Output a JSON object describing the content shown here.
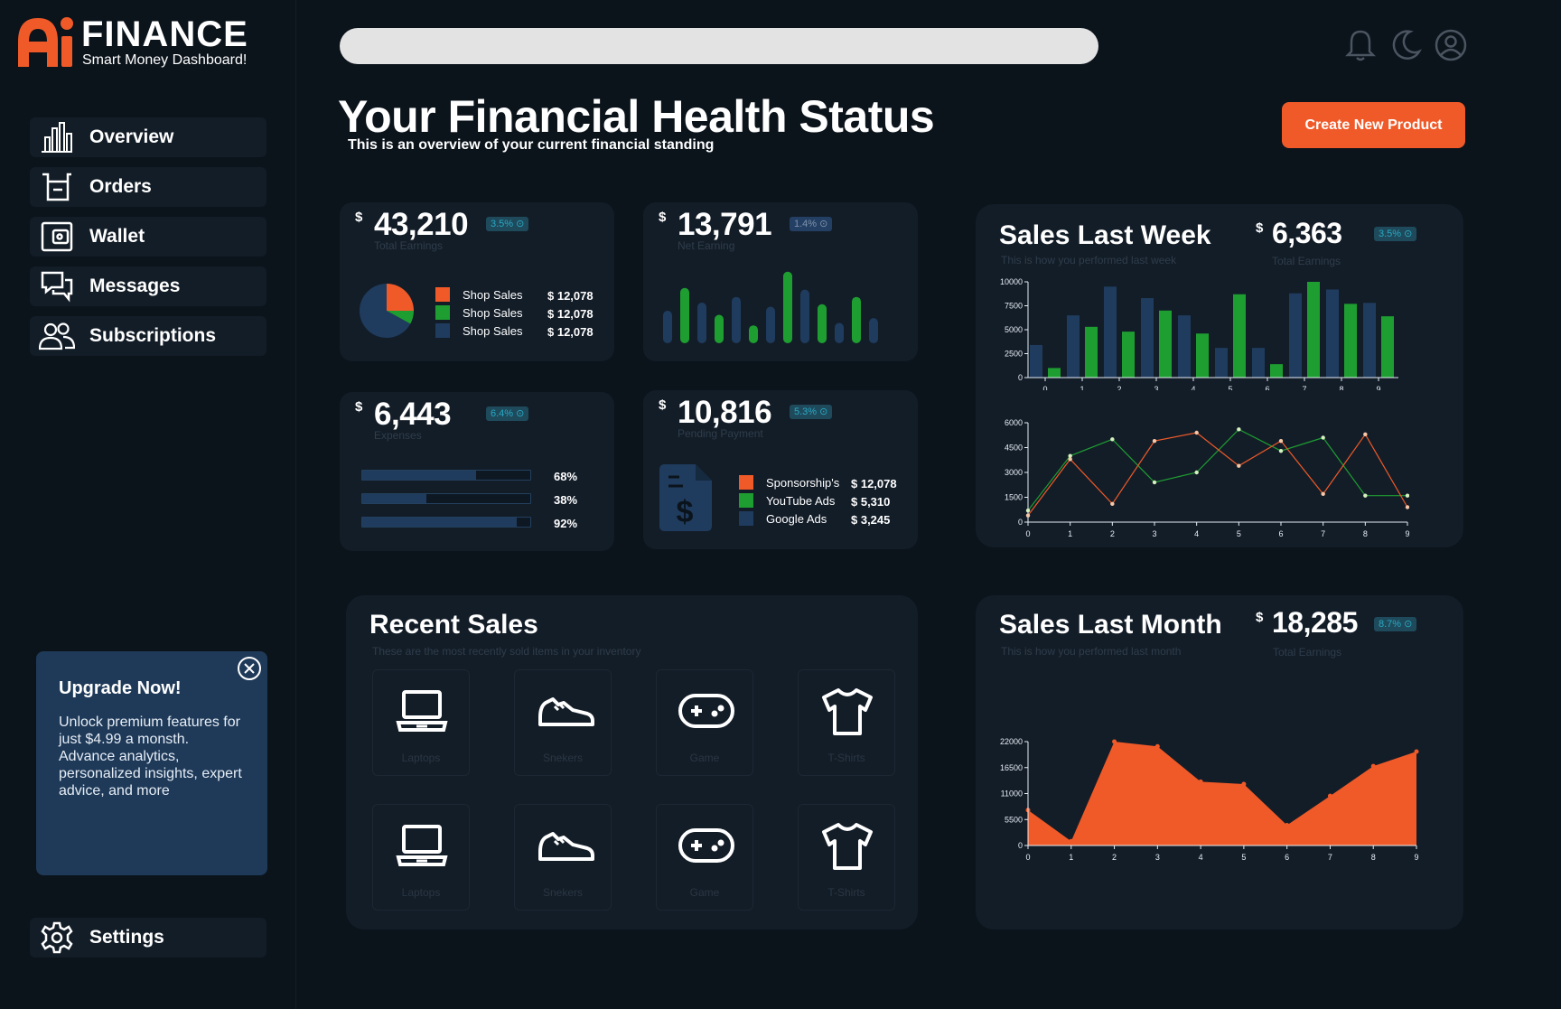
{
  "brand": {
    "name": "FINANCE",
    "tagline": "Smart Money Dashboard!",
    "accent": "#f05a28"
  },
  "search": {
    "placeholder": ""
  },
  "top_icons": [
    "bell-icon",
    "moon-icon",
    "user-icon"
  ],
  "nav": {
    "items": [
      {
        "label": "Overview",
        "icon": "bar-chart-icon"
      },
      {
        "label": "Orders",
        "icon": "basket-icon"
      },
      {
        "label": "Wallet",
        "icon": "wallet-icon"
      },
      {
        "label": "Messages",
        "icon": "messages-icon"
      },
      {
        "label": "Subscriptions",
        "icon": "users-icon"
      }
    ],
    "settings": "Settings"
  },
  "upgrade": {
    "title": "Upgrade Now!",
    "text": "Unlock premium features for just $4.99 a monsth. Advance analytics, personalized insights, expert advice, and more"
  },
  "header": {
    "title": "Your Financial Health Status",
    "subtitle": "This is an overview of your current financial standing",
    "create_button": "Create New Product"
  },
  "cards": {
    "total_earnings": {
      "currency": "$",
      "amount": "43,210",
      "badge": "3.5%",
      "label": "Total Earnings",
      "pie": [
        {
          "name": "Shop Sales",
          "value": 25,
          "color": "#f05a28"
        },
        {
          "name": "Shop Sales",
          "value": 8,
          "color": "#1e9e31"
        },
        {
          "name": "Shop Sales",
          "value": 67,
          "color": "#1f3c5e"
        }
      ],
      "legend": [
        {
          "name": "Shop Sales",
          "value": "$ 12,078",
          "color": "#f05a28"
        },
        {
          "name": "Shop Sales",
          "value": "$ 12,078",
          "color": "#1e9e31"
        },
        {
          "name": "Shop Sales",
          "value": "$ 12,078",
          "color": "#1f3c5e"
        }
      ]
    },
    "net_earning": {
      "currency": "$",
      "amount": "13,791",
      "badge": "1.4%",
      "label": "Net Earning",
      "bars": [
        40,
        68,
        50,
        35,
        57,
        22,
        45,
        88,
        66,
        48,
        25,
        57,
        31
      ],
      "bar_colors": [
        "#1f3c5e",
        "#1e9e31",
        "#1f3c5e",
        "#1e9e31",
        "#1f3c5e",
        "#1e9e31",
        "#1f3c5e",
        "#1e9e31",
        "#1f3c5e",
        "#1e9e31",
        "#1f3c5e",
        "#1e9e31",
        "#1f3c5e"
      ]
    },
    "expenses": {
      "currency": "$",
      "amount": "6,443",
      "badge": "6.4%",
      "label": "Expenses",
      "progress": [
        {
          "value": 68,
          "label": "68%"
        },
        {
          "value": 38,
          "label": "38%"
        },
        {
          "value": 92,
          "label": "92%"
        }
      ]
    },
    "pending": {
      "currency": "$",
      "amount": "10,816",
      "badge": "5.3%",
      "label": "Pending Payment",
      "icon": "invoice-dollar-icon",
      "legend": [
        {
          "name": "Sponsorship's",
          "value": "$ 12,078",
          "color": "#f05a28"
        },
        {
          "name": "YouTube Ads",
          "value": "$ 5,310",
          "color": "#1e9e31"
        },
        {
          "name": "Google Ads",
          "value": "$ 3,245",
          "color": "#1f3c5e"
        }
      ]
    }
  },
  "week": {
    "title": "Sales Last Week",
    "subtitle": "This is how you performed last week",
    "currency": "$",
    "amount": "6,363",
    "badge": "3.5%",
    "label": "Total Earnings"
  },
  "month": {
    "title": "Sales Last Month",
    "subtitle": "This is how you performed last month",
    "currency": "$",
    "amount": "18,285",
    "badge": "8.7%",
    "label": "Total Earnings"
  },
  "recent": {
    "title": "Recent Sales",
    "subtitle": "These are the most recently sold items in your inventory",
    "items": [
      {
        "label": "Laptops",
        "icon": "laptop-icon"
      },
      {
        "label": "Snekers",
        "icon": "sneaker-icon"
      },
      {
        "label": "Game",
        "icon": "gamepad-icon"
      },
      {
        "label": "T-Shirts",
        "icon": "tshirt-icon"
      },
      {
        "label": "Laptops",
        "icon": "laptop-icon"
      },
      {
        "label": "Snekers",
        "icon": "sneaker-icon"
      },
      {
        "label": "Game",
        "icon": "gamepad-icon"
      },
      {
        "label": "T-Shirts",
        "icon": "tshirt-icon"
      }
    ]
  },
  "chart_data": [
    {
      "type": "bar",
      "x": [
        0,
        1,
        2,
        3,
        4,
        5,
        6,
        7,
        8,
        9
      ],
      "series": [
        {
          "values": [
            3400,
            6500,
            9500,
            8300,
            6500,
            3100,
            3100,
            8800,
            9200,
            7800
          ],
          "color": "#1f3c5e"
        },
        {
          "values": [
            1000,
            5300,
            4800,
            7000,
            4600,
            8700,
            1400,
            10000,
            7700,
            6400
          ],
          "color": "#1e9e31"
        }
      ],
      "ylim": [
        0,
        10000
      ],
      "yticks": [
        0,
        2500,
        5000,
        7500,
        10000
      ]
    },
    {
      "type": "line",
      "x": [
        0,
        1,
        2,
        3,
        4,
        5,
        6,
        7,
        8,
        9
      ],
      "series": [
        {
          "values": [
            700,
            4000,
            5000,
            2400,
            3000,
            5600,
            4300,
            5100,
            1600,
            1600
          ],
          "color": "#1e9e31"
        },
        {
          "values": [
            400,
            3800,
            1100,
            4900,
            5400,
            3400,
            4900,
            1700,
            5300,
            900
          ],
          "color": "#f05a28"
        }
      ],
      "ylim": [
        0,
        6000
      ],
      "yticks": [
        0,
        1500,
        3000,
        4500,
        6000
      ]
    },
    {
      "type": "area",
      "x": [
        0,
        1,
        2,
        3,
        4,
        5,
        6,
        7,
        8,
        9
      ],
      "series": [
        {
          "values": [
            7500,
            900,
            22000,
            21000,
            13500,
            13000,
            4300,
            10500,
            16800,
            19900
          ],
          "color": "#f05a28"
        }
      ],
      "ylim": [
        0,
        22000
      ],
      "yticks": [
        0,
        5500,
        11000,
        16500,
        22000
      ]
    }
  ]
}
